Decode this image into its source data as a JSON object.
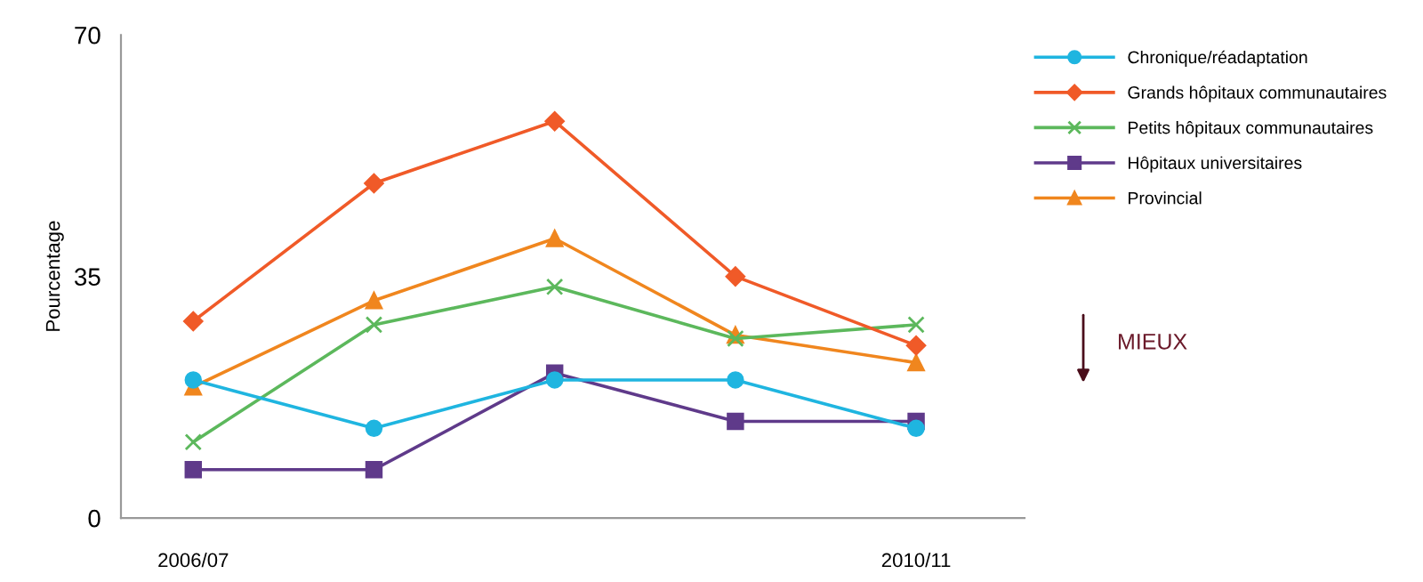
{
  "chart_data": {
    "type": "line",
    "ylabel": "Pourcentage",
    "categories": [
      "2006/07",
      null,
      null,
      null,
      "2010/11"
    ],
    "ylim": [
      0,
      70
    ],
    "yticks": [
      0,
      35,
      70
    ],
    "grid": false,
    "legend": "top right",
    "series": [
      {
        "name": "Chronique/réadaptation",
        "color": "#1fb5e0",
        "marker": "circle",
        "values": [
          20,
          13,
          20,
          20,
          13
        ]
      },
      {
        "name": "Grands hôpitaux communautaires",
        "color": "#f05a28",
        "marker": "diamond",
        "values": [
          28.5,
          48.5,
          57.5,
          35,
          25
        ]
      },
      {
        "name": "Petits hôpitaux communautaires",
        "color": "#5cb85c",
        "marker": "cross",
        "values": [
          11,
          28,
          33.5,
          26,
          28
        ]
      },
      {
        "name": "Hôpitaux universitaires",
        "color": "#5f3a8a",
        "marker": "square",
        "values": [
          7,
          7,
          21,
          14,
          14
        ]
      },
      {
        "name": "Provincial",
        "color": "#f0861e",
        "marker": "triangle",
        "values": [
          19,
          31.5,
          40.5,
          26.5,
          22.5
        ]
      }
    ],
    "annotations": [
      "MIEUX"
    ]
  }
}
